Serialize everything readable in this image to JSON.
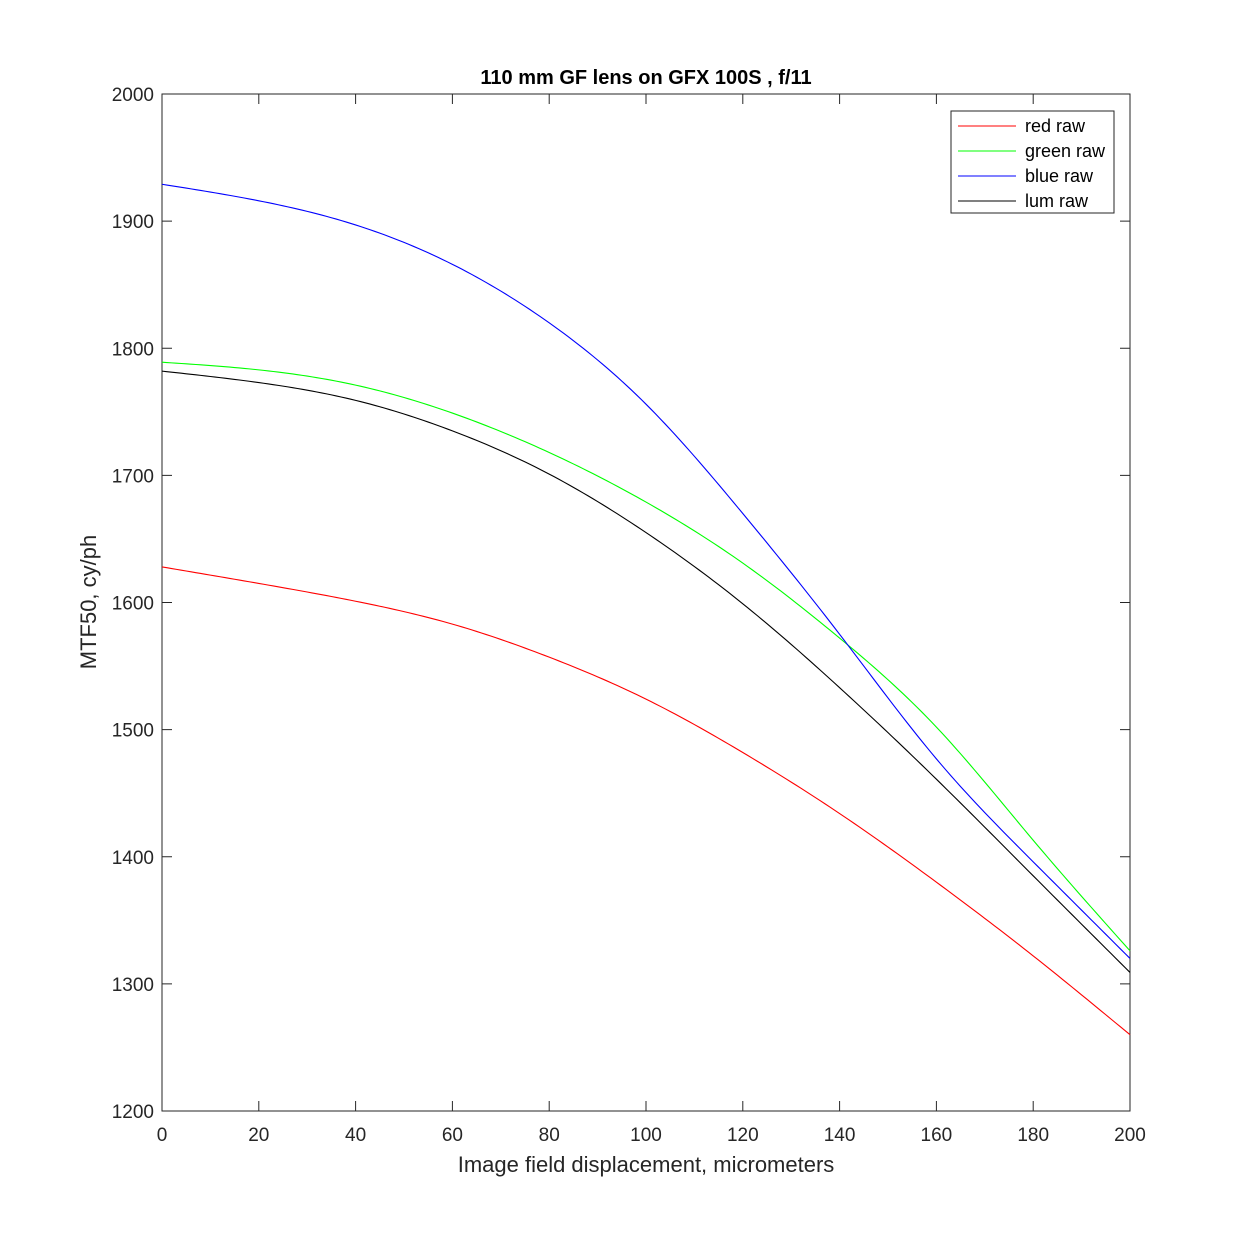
{
  "chart_data": {
    "type": "line",
    "title": "110 mm GF lens on GFX 100S , f/11",
    "xlabel": "Image field displacement, micrometers",
    "ylabel": "MTF50, cy/ph",
    "xlim": [
      0,
      200
    ],
    "ylim": [
      1200,
      2000
    ],
    "xticks": [
      "0",
      "20",
      "40",
      "60",
      "80",
      "100",
      "120",
      "140",
      "160",
      "180",
      "200"
    ],
    "yticks": [
      "1200",
      "1300",
      "1400",
      "1500",
      "1600",
      "1700",
      "1800",
      "1900",
      "2000"
    ],
    "grid": false,
    "legend_position": "top-right",
    "x": [
      0,
      20,
      40,
      60,
      80,
      100,
      120,
      140,
      160,
      180,
      200
    ],
    "series": [
      {
        "name": "red raw",
        "color": "#ff0000",
        "values": [
          1628,
          1615,
          1601,
          1583,
          1557,
          1524,
          1482,
          1434,
          1380,
          1322,
          1260
        ]
      },
      {
        "name": "green raw",
        "color": "#00ff00",
        "values": [
          1789,
          1783,
          1771,
          1749,
          1718,
          1679,
          1631,
          1572,
          1502,
          1413,
          1326
        ]
      },
      {
        "name": "blue raw",
        "color": "#0000ff",
        "values": [
          1929,
          1916,
          1897,
          1866,
          1820,
          1756,
          1670,
          1575,
          1477,
          1396,
          1320
        ]
      },
      {
        "name": "lum raw",
        "color": "#000000",
        "values": [
          1782,
          1773,
          1759,
          1735,
          1701,
          1655,
          1599,
          1533,
          1461,
          1385,
          1309
        ]
      }
    ]
  }
}
